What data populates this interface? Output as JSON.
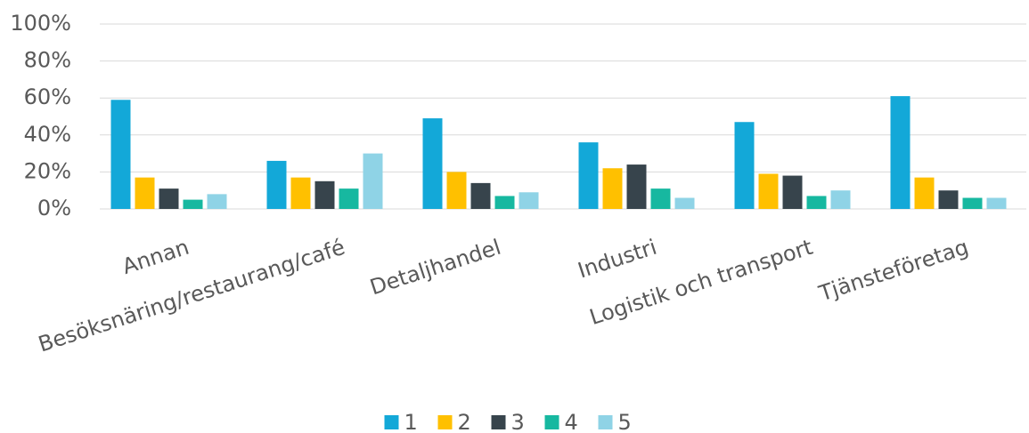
{
  "chart_data": {
    "type": "bar",
    "categories": [
      "Annan",
      "Besöksnäring/restaurang/café",
      "Detaljhandel",
      "Industri",
      "Logistik och transport",
      "Tjänsteföretag"
    ],
    "series": [
      {
        "name": "1",
        "color": "#13a8d8",
        "values": [
          59,
          26,
          49,
          36,
          47,
          61
        ]
      },
      {
        "name": "2",
        "color": "#ffc000",
        "values": [
          17,
          17,
          20,
          22,
          19,
          17
        ]
      },
      {
        "name": "3",
        "color": "#37444c",
        "values": [
          11,
          15,
          14,
          24,
          18,
          10
        ]
      },
      {
        "name": "4",
        "color": "#17b8a0",
        "values": [
          5,
          11,
          7,
          11,
          7,
          6
        ]
      },
      {
        "name": "5",
        "color": "#8fd3e6",
        "values": [
          8,
          30,
          9,
          6,
          10,
          6
        ]
      }
    ],
    "ylim": [
      0,
      100
    ],
    "yticks": [
      {
        "value": 0,
        "label": "0%"
      },
      {
        "value": 20,
        "label": "20%"
      },
      {
        "value": 40,
        "label": "40%"
      },
      {
        "value": 60,
        "label": "60%"
      },
      {
        "value": 80,
        "label": "80%"
      },
      {
        "value": 100,
        "label": "100%"
      }
    ],
    "grid": true,
    "legend": "bottom"
  }
}
